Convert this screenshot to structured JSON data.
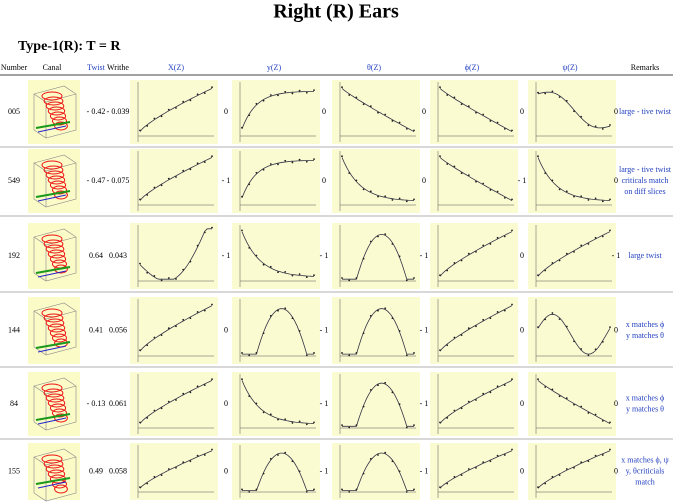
{
  "title": "Right (R) Ears",
  "subtitle": "Type-1(R): T = R",
  "table": {
    "header": [
      "Number",
      "Canal",
      "Twist",
      "Writhe",
      "X(Z)",
      "y(Z)",
      "θ(Z)",
      "ϕ(Z)",
      "ψ(Z)",
      "Remarks"
    ],
    "rows": [
      {
        "number": "005",
        "twist": "- 0.42",
        "writhe": "- 0.039",
        "signs": [
          "0",
          "0",
          "0",
          "0",
          "0"
        ],
        "remarks": [
          "large - tive twist"
        ]
      },
      {
        "number": "549",
        "twist": "- 0.47",
        "writhe": "- 0.075",
        "signs": [
          "- 1",
          "0",
          "0",
          "- 1",
          "0"
        ],
        "remarks": [
          "large - tive twist",
          "criticals match",
          "on diff slices"
        ]
      },
      {
        "number": "192",
        "twist": "0.64",
        "writhe": "0.043",
        "signs": [
          "- 1",
          "- 1",
          "- 1",
          "0",
          "- 1"
        ],
        "remarks": [
          "large twist"
        ]
      },
      {
        "number": "144",
        "twist": "0.41",
        "writhe": "0.056",
        "signs": [
          "0",
          "- 1",
          "- 1",
          "0",
          "0"
        ],
        "remarks": [
          "x matches ϕ",
          "y matches θ"
        ]
      },
      {
        "number": "84",
        "twist": "- 0.13",
        "writhe": "0.061",
        "signs": [
          "0",
          "- 1",
          "- 1",
          "0",
          "0"
        ],
        "remarks": [
          "x matches ϕ",
          "y matches θ"
        ]
      },
      {
        "number": "155",
        "twist": "0.49",
        "writhe": "0.058",
        "signs": [
          "0",
          "- 1",
          "- 1",
          "0",
          "0"
        ],
        "remarks": [
          "x matches ϕ, ψ",
          "y, θcriticials",
          "match"
        ]
      }
    ]
  }
}
